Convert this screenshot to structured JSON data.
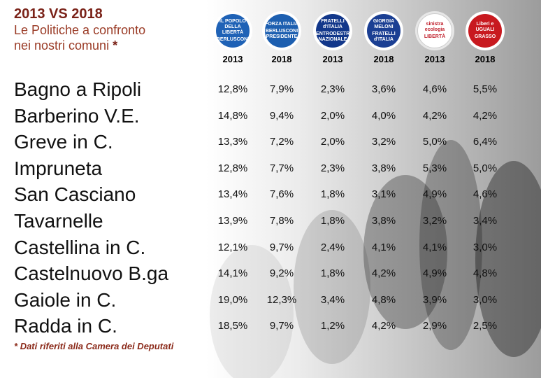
{
  "header": {
    "title": "2013 VS 2018",
    "subtitle_line1": "Le Politiche a confronto",
    "subtitle_line2": "nei nostri comuni",
    "asterisk": "*"
  },
  "logos": [
    {
      "name": "pdl-logo",
      "text1": "IL POPOLO DELLA LIBERTÀ",
      "text2": "BERLUSCONI",
      "bg": "#1f62b6",
      "fg": "#ffffff"
    },
    {
      "name": "forza-italia-logo",
      "text1": "FORZA ITALIA",
      "text2": "BERLUSCONI PRESIDENTE",
      "bg": "#1d5fb0",
      "fg": "#ffffff"
    },
    {
      "name": "fratelli-italia-2013-logo",
      "text1": "FRATELLI d'ITALIA",
      "text2": "CENTRODESTRA NAZIONALE",
      "bg": "#12378a",
      "fg": "#ffffff"
    },
    {
      "name": "fratelli-italia-meloni-logo",
      "text1": "GIORGIA MELONI",
      "text2": "FRATELLI d'ITALIA",
      "bg": "#1b3f93",
      "fg": "#ffffff"
    },
    {
      "name": "sinistra-ecologia-liberta-logo",
      "text1": "sinistra ecologia",
      "text2": "LIBERTÀ",
      "bg": "#ffffff",
      "fg": "#c0202c"
    },
    {
      "name": "liberi-e-uguali-logo",
      "text1": "Liberi e UGUALI",
      "text2": "GRASSO",
      "bg": "#c8191f",
      "fg": "#ffffff"
    }
  ],
  "years": [
    "2013",
    "2018",
    "2013",
    "2018",
    "2013",
    "2018"
  ],
  "rows": [
    {
      "comune": "Bagno a Ripoli",
      "values": [
        "12,8%",
        "7,9%",
        "2,3%",
        "3,6%",
        "4,6%",
        "5,5%"
      ]
    },
    {
      "comune": "Barberino V.E.",
      "values": [
        "14,8%",
        "9,4%",
        "2,0%",
        "4,0%",
        "4,2%",
        "4,2%"
      ]
    },
    {
      "comune": "Greve in C.",
      "values": [
        "13,3%",
        "7,2%",
        "2,0%",
        "3,2%",
        "5,0%",
        "6,4%"
      ]
    },
    {
      "comune": "Impruneta",
      "values": [
        "12,8%",
        "7,7%",
        "2,3%",
        "3,8%",
        "5,3%",
        "5,0%"
      ]
    },
    {
      "comune": "San Casciano",
      "values": [
        "13,4%",
        "7,6%",
        "1,8%",
        "3,1%",
        "4,9%",
        "4,6%"
      ]
    },
    {
      "comune": "Tavarnelle",
      "values": [
        "13,9%",
        "7,8%",
        "1,8%",
        "3,8%",
        "3,2%",
        "3,4%"
      ]
    },
    {
      "comune": "Castellina in C.",
      "values": [
        "12,1%",
        "9,7%",
        "2,4%",
        "4,1%",
        "4,1%",
        "3,0%"
      ]
    },
    {
      "comune": "Castelnuovo B.ga",
      "values": [
        "14,1%",
        "9,2%",
        "1,8%",
        "4,2%",
        "4,9%",
        "4,8%"
      ]
    },
    {
      "comune": "Gaiole in C.",
      "values": [
        "19,0%",
        "12,3%",
        "3,4%",
        "4,8%",
        "3,9%",
        "3,0%"
      ]
    },
    {
      "comune": "Radda in C.",
      "values": [
        "18,5%",
        "9,7%",
        "1,2%",
        "4,2%",
        "2,9%",
        "2,5%"
      ]
    }
  ],
  "footnote": {
    "asterisk": "*",
    "text": "Dati riferiti alla Camera dei Deputati"
  }
}
